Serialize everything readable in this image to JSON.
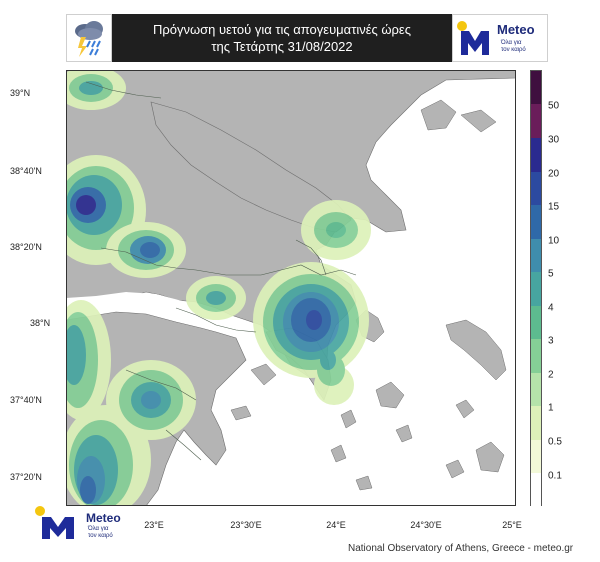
{
  "header": {
    "title_line1": "Πρόγνωση υετού για τις απογευματινές ώρες",
    "title_line2": "της Τετάρτης 31/08/2022",
    "weather_icon": "cloud-lightning-rain-icon",
    "logo": {
      "word": "Meteo",
      "tagline1": "Όλα για",
      "tagline2": "τον καιρό"
    }
  },
  "map": {
    "y_tick_labels": [
      "39°N",
      "38°40'N",
      "38°20'N",
      "38°N",
      "37°40'N",
      "37°20'N"
    ],
    "x_tick_labels": [
      "23°E",
      "23°30'E",
      "24°E",
      "24°30'E",
      "25°E"
    ],
    "land_color": "#b4b4b4",
    "sea_color": "#ffffff",
    "border_color": "#556b55"
  },
  "colorbar": {
    "labels": [
      "50",
      "30",
      "20",
      "15",
      "10",
      "5",
      "4",
      "3",
      "2",
      "1",
      "0.5",
      "0.1"
    ],
    "colors": [
      "#3f0f3f",
      "#6a1d5a",
      "#2a2a8f",
      "#2c4aa0",
      "#2f69a8",
      "#3f8dad",
      "#47a5a0",
      "#5dbb8f",
      "#85cf96",
      "#b5e3aa",
      "#ddf1b9",
      "#f3f9d8",
      "#ffffff"
    ]
  },
  "bottom_logo": {
    "word": "Meteo",
    "tagline1": "Όλα για",
    "tagline2": "τον καιρό"
  },
  "footer": {
    "credit": "National Observatory of Athens, Greece - meteo.gr"
  }
}
